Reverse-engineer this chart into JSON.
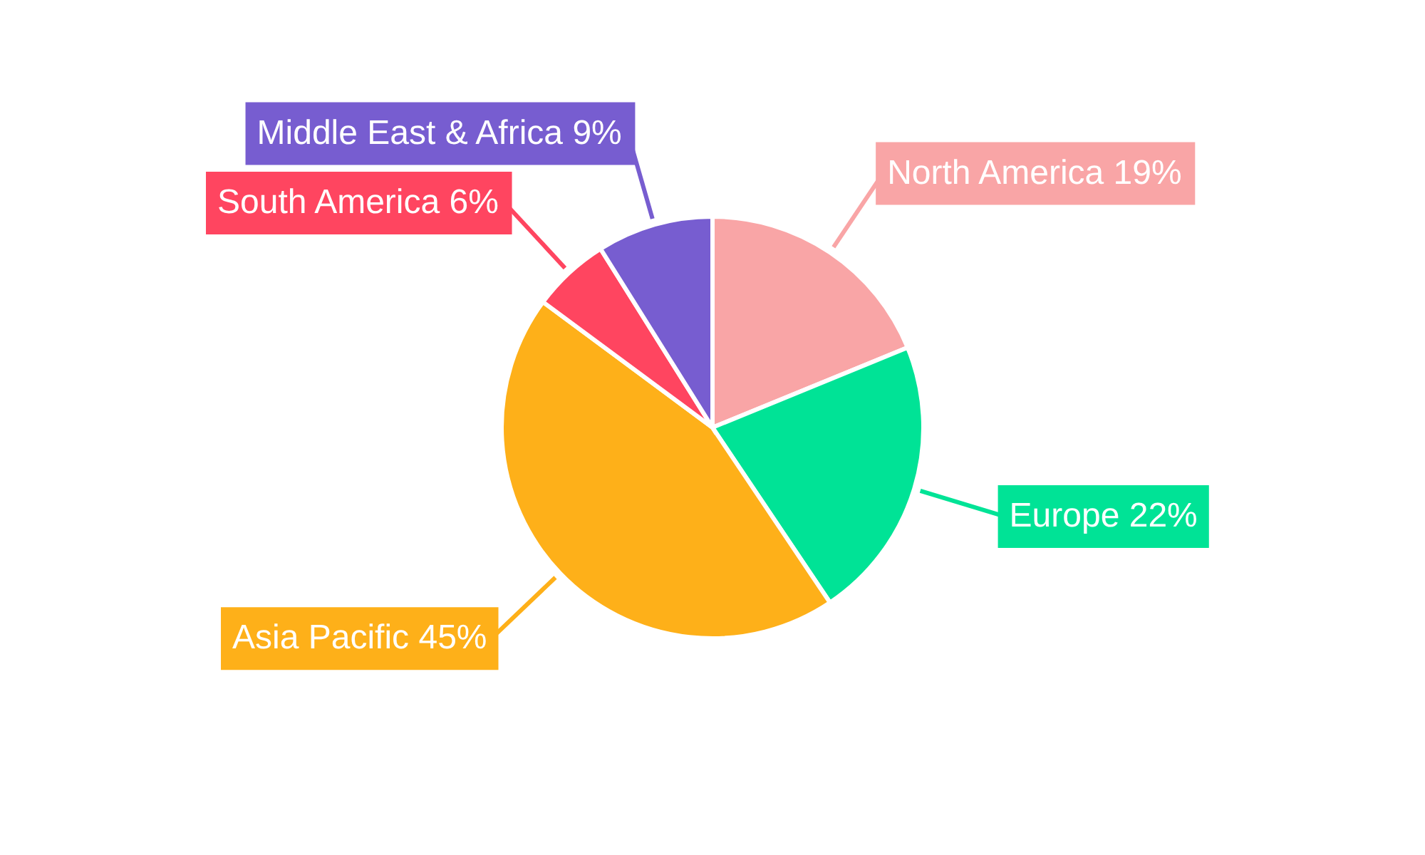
{
  "chart_data": {
    "type": "pie",
    "categories": [
      "North America",
      "Europe",
      "Asia Pacific",
      "South America",
      "Middle East & Africa"
    ],
    "values": [
      19,
      22,
      45,
      6,
      9
    ],
    "value_labels": [
      "19%",
      "22%",
      "45%",
      "6%",
      "9%"
    ],
    "colors": [
      "#f9a5a6",
      "#00e396",
      "#feb019",
      "#ff4560",
      "#775dd0"
    ]
  }
}
